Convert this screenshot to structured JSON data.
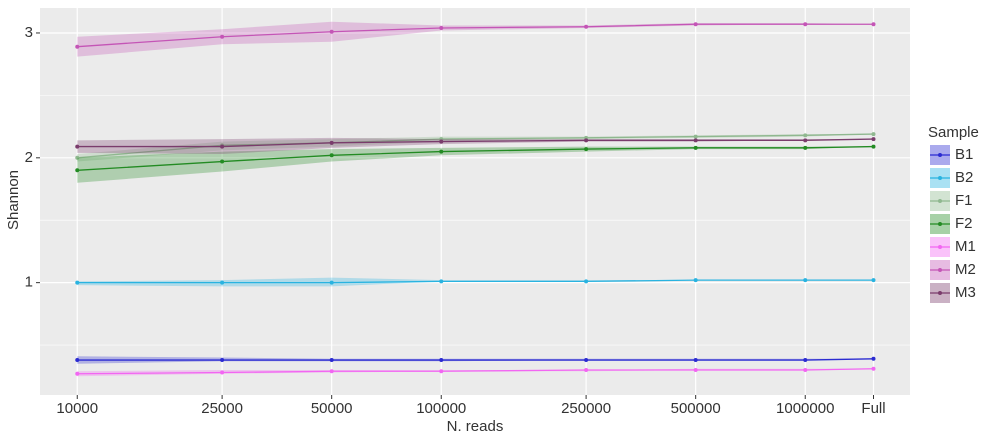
{
  "chart_data": {
    "type": "line",
    "x_label": "N. reads",
    "y_label": "Shannon",
    "legend_title": "Sample",
    "legend": "right",
    "x_log": true,
    "grid": true,
    "x": [
      10000,
      25000,
      50000,
      100000,
      250000,
      500000,
      1000000,
      1540000
    ],
    "xlim": [
      7900,
      1940000
    ],
    "xticks": [
      10000,
      25000,
      50000,
      100000,
      250000,
      500000,
      1000000,
      {
        "value": 1540000,
        "label": "Full"
      }
    ],
    "ylim": [
      0.1,
      3.2
    ],
    "yticks": [
      1,
      2,
      3
    ],
    "y_minor_grid": [
      0.5,
      1.5,
      2.5
    ],
    "series": [
      {
        "name": "B1",
        "color": "#2b2bd1",
        "values": [
          0.38,
          0.38,
          0.38,
          0.38,
          0.38,
          0.38,
          0.38,
          0.39
        ],
        "lower": [
          0.35,
          0.37,
          0.37,
          0.37,
          0.38,
          0.38,
          0.38,
          0.39
        ],
        "upper": [
          0.41,
          0.4,
          0.39,
          0.39,
          0.39,
          0.39,
          0.39,
          0.39
        ]
      },
      {
        "name": "B2",
        "color": "#29b3e0",
        "values": [
          1.0,
          1.0,
          1.0,
          1.01,
          1.01,
          1.02,
          1.02,
          1.02
        ],
        "lower": [
          0.98,
          0.97,
          0.97,
          1.01,
          1.01,
          1.02,
          1.02,
          1.02
        ],
        "upper": [
          1.01,
          1.02,
          1.04,
          1.02,
          1.02,
          1.02,
          1.02,
          1.02
        ]
      },
      {
        "name": "F1",
        "color": "#8fb88f",
        "values": [
          2.0,
          2.1,
          2.12,
          2.15,
          2.16,
          2.17,
          2.18,
          2.19
        ],
        "lower": [
          1.97,
          2.06,
          2.09,
          2.13,
          2.15,
          2.16,
          2.17,
          2.19
        ],
        "upper": [
          2.03,
          2.13,
          2.15,
          2.17,
          2.17,
          2.18,
          2.19,
          2.19
        ]
      },
      {
        "name": "F2",
        "color": "#238b23",
        "values": [
          1.9,
          1.97,
          2.02,
          2.05,
          2.07,
          2.08,
          2.08,
          2.09
        ],
        "lower": [
          1.8,
          1.89,
          1.97,
          2.02,
          2.05,
          2.07,
          2.07,
          2.09
        ],
        "upper": [
          2.0,
          2.05,
          2.07,
          2.08,
          2.09,
          2.09,
          2.09,
          2.09
        ]
      },
      {
        "name": "M1",
        "color": "#f266f2",
        "values": [
          0.27,
          0.28,
          0.29,
          0.29,
          0.3,
          0.3,
          0.3,
          0.31
        ],
        "lower": [
          0.25,
          0.27,
          0.28,
          0.29,
          0.29,
          0.3,
          0.3,
          0.31
        ],
        "upper": [
          0.29,
          0.3,
          0.3,
          0.3,
          0.3,
          0.31,
          0.31,
          0.31
        ]
      },
      {
        "name": "M2",
        "color": "#c455b6",
        "values": [
          2.89,
          2.97,
          3.01,
          3.04,
          3.05,
          3.07,
          3.07,
          3.07
        ],
        "lower": [
          2.81,
          2.91,
          2.93,
          3.02,
          3.04,
          3.06,
          3.07,
          3.07
        ],
        "upper": [
          2.97,
          3.03,
          3.09,
          3.06,
          3.06,
          3.08,
          3.08,
          3.07
        ]
      },
      {
        "name": "M3",
        "color": "#7a3c6c",
        "values": [
          2.09,
          2.09,
          2.12,
          2.13,
          2.14,
          2.14,
          2.14,
          2.15
        ],
        "lower": [
          2.04,
          2.03,
          2.08,
          2.11,
          2.13,
          2.13,
          2.14,
          2.15
        ],
        "upper": [
          2.14,
          2.15,
          2.16,
          2.15,
          2.15,
          2.15,
          2.15,
          2.15
        ]
      }
    ]
  }
}
